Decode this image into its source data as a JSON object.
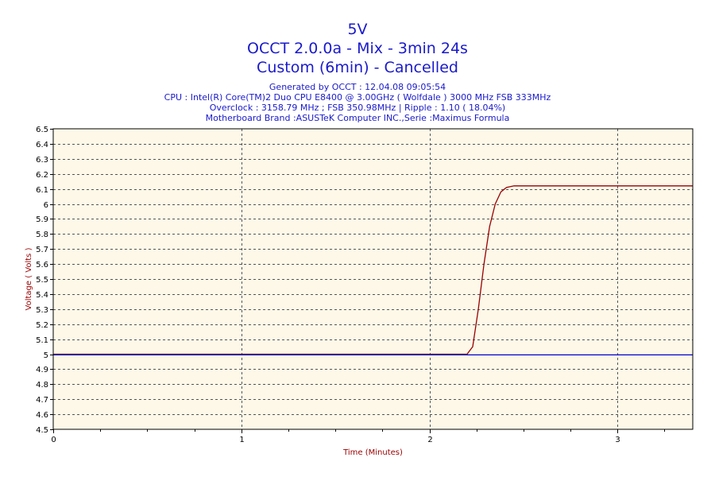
{
  "header": {
    "title": "5V",
    "line2": "OCCT 2.0.0a - Mix - 3min 24s",
    "line3": "Custom (6min) - Cancelled",
    "info": [
      "Generated by OCCT : 12.04.08 09:05:54",
      "CPU : Intel(R) Core(TM)2 Duo CPU E8400 @ 3.00GHz ( Wolfdale ) 3000 MHz FSB 333MHz",
      "Overclock : 3158.79 MHz ; FSB 350.98MHz | Ripple : 1.10 ( 18.04%)",
      "Motherboard Brand :ASUSTeK Computer INC.,Serie :Maximus Formula"
    ]
  },
  "colors": {
    "title_text": "#1a1acc",
    "plot_background": "#fdf8e8",
    "grid": "#555555",
    "voltage_series": "#990000",
    "reference_series": "#0000cc",
    "axis_label": "#990000"
  },
  "chart_data": {
    "type": "line",
    "title": "5V",
    "xlabel": "Time (Minutes)",
    "ylabel": "Voltage ( Volts )",
    "xlim": [
      0,
      3.4
    ],
    "ylim": [
      4.5,
      6.5
    ],
    "x_ticks": [
      0,
      1,
      2,
      3
    ],
    "y_ticks": [
      4.5,
      4.6,
      4.7,
      4.8,
      4.9,
      5,
      5.1,
      5.2,
      5.3,
      5.4,
      5.5,
      5.6,
      5.7,
      5.8,
      5.9,
      6,
      6.1,
      6.2,
      6.3,
      6.4,
      6.5
    ],
    "grid": true,
    "series": [
      {
        "color": "#990000",
        "x": [
          0,
          0.5,
          1.0,
          1.5,
          2.0,
          2.2,
          2.23,
          2.26,
          2.29,
          2.32,
          2.35,
          2.38,
          2.41,
          2.45,
          2.5,
          3.0,
          3.4
        ],
        "y": [
          5.0,
          5.0,
          5.0,
          5.0,
          5.0,
          5.0,
          5.05,
          5.3,
          5.6,
          5.85,
          6.0,
          6.08,
          6.11,
          6.12,
          6.12,
          6.12,
          6.12
        ]
      },
      {
        "color": "#0000cc",
        "x": [
          0,
          3.4
        ],
        "y": [
          4.995,
          4.995
        ]
      }
    ]
  }
}
